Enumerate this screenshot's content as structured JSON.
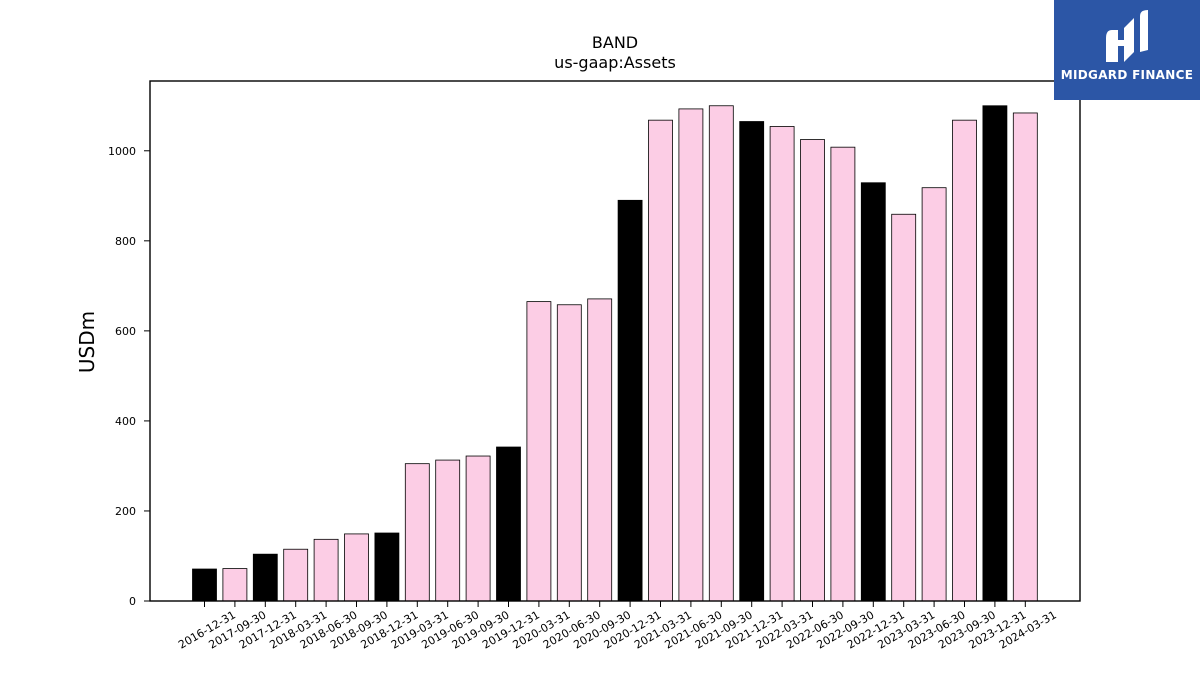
{
  "chart_data": {
    "type": "bar",
    "title": "BAND",
    "subtitle": "us-gaap:Assets",
    "xlabel": "",
    "ylabel": "USDm",
    "ylim": [
      0,
      1155
    ],
    "yticks": [
      0,
      200,
      400,
      600,
      800,
      1000
    ],
    "grid": false,
    "categories": [
      "2016-12-31",
      "2017-09-30",
      "2017-12-31",
      "2018-03-31",
      "2018-06-30",
      "2018-09-30",
      "2018-12-31",
      "2019-03-31",
      "2019-06-30",
      "2019-09-30",
      "2019-12-31",
      "2020-03-31",
      "2020-06-30",
      "2020-09-30",
      "2020-12-31",
      "2021-03-31",
      "2021-06-30",
      "2021-09-30",
      "2021-12-31",
      "2022-03-31",
      "2022-06-30",
      "2022-09-30",
      "2022-12-31",
      "2023-03-31",
      "2023-06-30",
      "2023-09-30",
      "2023-12-31",
      "2024-03-31"
    ],
    "values": [
      71,
      72,
      104,
      115,
      137,
      149,
      151,
      305,
      313,
      322,
      342,
      665,
      658,
      671,
      890,
      1068,
      1093,
      1100,
      1065,
      1054,
      1025,
      1008,
      929,
      859,
      918,
      1068,
      1100,
      1084
    ],
    "colors": {
      "annual": "#000000",
      "quarterly": "#fccde5",
      "edge": "#000000"
    },
    "annual_flags": [
      true,
      false,
      true,
      false,
      false,
      false,
      true,
      false,
      false,
      false,
      true,
      false,
      false,
      false,
      true,
      false,
      false,
      false,
      true,
      false,
      false,
      false,
      true,
      false,
      false,
      false,
      true,
      false
    ]
  },
  "logo": {
    "brand": "MIDGARD FINANCE",
    "icon": "midgard-logo-icon",
    "color": "#2c56a6"
  }
}
